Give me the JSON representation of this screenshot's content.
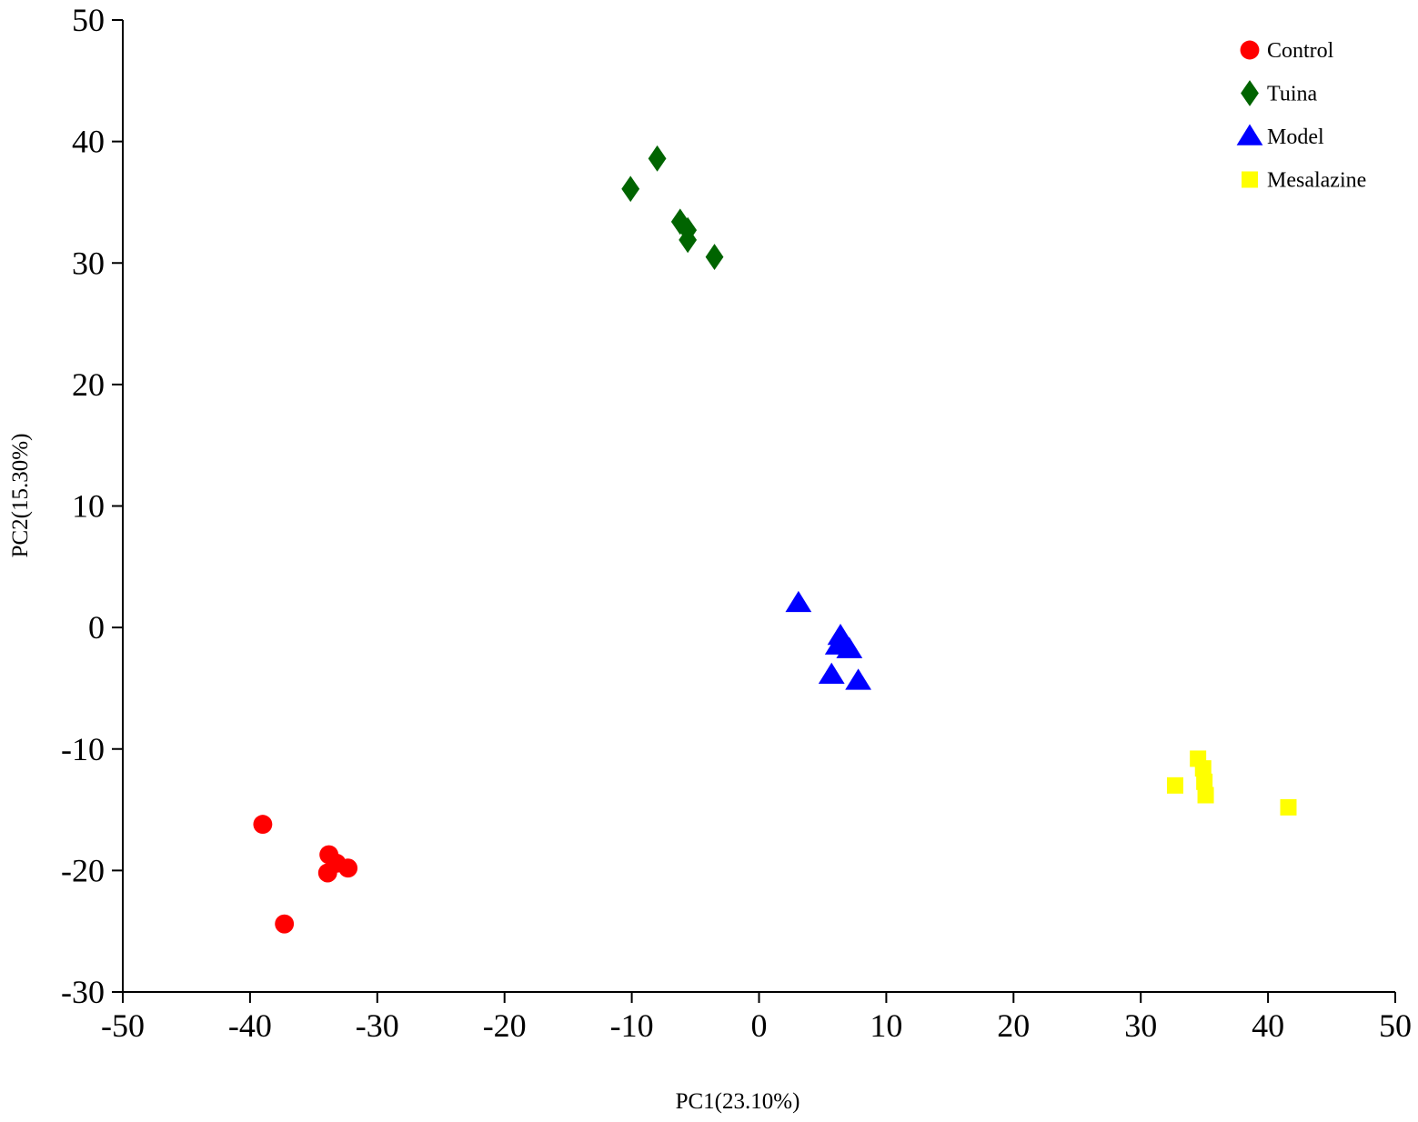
{
  "chart_data": {
    "type": "scatter",
    "title": "",
    "xlabel": "PC1(23.10%)",
    "ylabel": "PC2(15.30%)",
    "xlim": [
      -50,
      50
    ],
    "ylim": [
      -30,
      50
    ],
    "xticks": [
      -50,
      -40,
      -30,
      -20,
      -10,
      0,
      10,
      20,
      30,
      40,
      50
    ],
    "yticks": [
      -30,
      -20,
      -10,
      0,
      10,
      20,
      30,
      40,
      50
    ],
    "grid": false,
    "legend_position": "top-right",
    "series": [
      {
        "name": "Control",
        "marker": "circle",
        "color": "#ff0000",
        "points": [
          [
            -39.0,
            -16.2
          ],
          [
            -33.8,
            -18.7
          ],
          [
            -33.2,
            -19.4
          ],
          [
            -32.3,
            -19.8
          ],
          [
            -33.9,
            -20.2
          ],
          [
            -37.3,
            -24.4
          ]
        ]
      },
      {
        "name": "Tuina",
        "marker": "diamond",
        "color": "#006400",
        "points": [
          [
            -8.0,
            38.6
          ],
          [
            -10.1,
            36.1
          ],
          [
            -6.2,
            33.4
          ],
          [
            -5.6,
            32.7
          ],
          [
            -5.6,
            31.9
          ],
          [
            -3.5,
            30.5
          ]
        ]
      },
      {
        "name": "Model",
        "marker": "triangle",
        "color": "#0000ff",
        "points": [
          [
            3.1,
            2.0
          ],
          [
            6.4,
            -0.7
          ],
          [
            6.2,
            -1.5
          ],
          [
            7.1,
            -1.8
          ],
          [
            5.7,
            -3.9
          ],
          [
            7.8,
            -4.4
          ]
        ]
      },
      {
        "name": "Mesalazine",
        "marker": "square",
        "color": "#ffff00",
        "points": [
          [
            34.5,
            -10.8
          ],
          [
            34.9,
            -11.6
          ],
          [
            35.0,
            -12.7
          ],
          [
            32.7,
            -13.0
          ],
          [
            35.1,
            -13.8
          ],
          [
            41.6,
            -14.8
          ]
        ]
      }
    ]
  }
}
